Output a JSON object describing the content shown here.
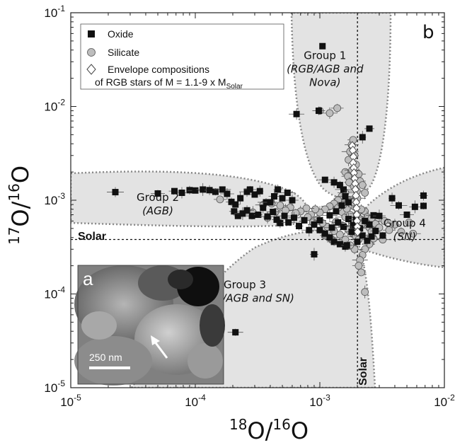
{
  "chart_data": {
    "type": "scatter",
    "panel_label": "b",
    "xlabel": "18O/16O",
    "ylabel": "17O/16O",
    "x_scale": "log",
    "y_scale": "log",
    "xlim": [
      1e-05,
      0.01
    ],
    "ylim": [
      1e-05,
      0.1
    ],
    "x_ticks": [
      {
        "value": 1e-05,
        "base": "10",
        "exp": "-5"
      },
      {
        "value": 0.0001,
        "base": "10",
        "exp": "-4"
      },
      {
        "value": 0.001,
        "base": "10",
        "exp": "-3"
      },
      {
        "value": 0.01,
        "base": "10",
        "exp": "-2"
      }
    ],
    "y_ticks": [
      {
        "value": 1e-05,
        "base": "10",
        "exp": "-5"
      },
      {
        "value": 0.0001,
        "base": "10",
        "exp": "-4"
      },
      {
        "value": 0.001,
        "base": "10",
        "exp": "-3"
      },
      {
        "value": 0.01,
        "base": "10",
        "exp": "-2"
      },
      {
        "value": 0.1,
        "base": "10",
        "exp": "-1"
      }
    ],
    "solar": {
      "x": 0.002005,
      "y": 0.000381,
      "label_h": "Solar",
      "label_v": "Solar"
    },
    "legend": {
      "placement": "top-left",
      "entries": [
        {
          "marker": "square",
          "label": "Oxide"
        },
        {
          "marker": "circle",
          "label": "Silicate"
        },
        {
          "marker": "diamond",
          "label": "Envelope compositions",
          "label2": "of RGB stars of M = 1.1-9 x M",
          "label2_sub": "Solar"
        }
      ]
    },
    "regions": [
      {
        "name": "Group 1",
        "sub1": "(RGB/AGB and",
        "sub2": "Nova)",
        "label_x": 0.0011,
        "label_y": 0.032
      },
      {
        "name": "Group 2",
        "sub1": "(AGB)",
        "sub2": "",
        "label_x": 5e-05,
        "label_y": 0.00098
      },
      {
        "name": "Group 3",
        "sub1": "(RGB/AGB and SN)",
        "sub2": "",
        "label_x": 0.00025,
        "label_y": 0.000115
      },
      {
        "name": "Group 4",
        "sub1": "(SN)",
        "sub2": "",
        "label_x": 0.0048,
        "label_y": 0.00052
      }
    ],
    "series": [
      {
        "name": "Oxide",
        "marker": "square",
        "color": "#111111",
        "points": [
          [
            0.00105,
            0.044
          ],
          [
            0.00065,
            0.0083
          ],
          [
            0.00098,
            0.009
          ],
          [
            0.0025,
            0.0058
          ],
          [
            0.0022,
            0.0047
          ],
          [
            2.28e-05,
            0.00122
          ],
          [
            5e-05,
            0.00118
          ],
          [
            6.8e-05,
            0.00125
          ],
          [
            7.8e-05,
            0.0012
          ],
          [
            9e-05,
            0.00128
          ],
          [
            0.0001,
            0.00127
          ],
          [
            0.000115,
            0.0013
          ],
          [
            0.00013,
            0.00128
          ],
          [
            0.000145,
            0.00123
          ],
          [
            0.000165,
            0.0013
          ],
          [
            0.00018,
            0.00117
          ],
          [
            0.000195,
            0.00096
          ],
          [
            0.00021,
            0.0009
          ],
          [
            0.00023,
            0.00105
          ],
          [
            0.00026,
            0.00123
          ],
          [
            0.000275,
            0.0013
          ],
          [
            0.0003,
            0.00115
          ],
          [
            0.00033,
            0.00125
          ],
          [
            0.00037,
            0.00095
          ],
          [
            0.0004,
            0.00095
          ],
          [
            0.00043,
            0.0011
          ],
          [
            0.00046,
            0.0013
          ],
          [
            0.0005,
            0.00105
          ],
          [
            0.00055,
            0.0012
          ],
          [
            0.0006,
            0.001
          ],
          [
            0.000205,
            0.00076
          ],
          [
            0.00022,
            0.00068
          ],
          [
            0.00024,
            0.00072
          ],
          [
            0.00026,
            0.00078
          ],
          [
            0.000285,
            0.00068
          ],
          [
            0.00032,
            0.0007
          ],
          [
            0.00035,
            0.00083
          ],
          [
            0.00038,
            0.00067
          ],
          [
            0.00042,
            0.00075
          ],
          [
            0.00045,
            0.00062
          ],
          [
            0.00048,
            0.00057
          ],
          [
            0.00052,
            0.00068
          ],
          [
            0.00056,
            0.00058
          ],
          [
            0.00062,
            0.00065
          ],
          [
            0.00068,
            0.00053
          ],
          [
            0.00075,
            0.00061
          ],
          [
            0.00082,
            0.00048
          ],
          [
            0.0009,
            0.00055
          ],
          [
            0.001,
            0.00048
          ],
          [
            0.0011,
            0.00044
          ],
          [
            0.0012,
            0.0004
          ],
          [
            0.0013,
            0.00036
          ],
          [
            0.00145,
            0.00034
          ],
          [
            0.0009,
            0.000265
          ],
          [
            0.0016,
            0.00032
          ],
          [
            0.00021,
            3.9e-05
          ],
          [
            0.0011,
            0.00165
          ],
          [
            0.0013,
            0.00155
          ],
          [
            0.00145,
            0.00145
          ],
          [
            0.00155,
            0.0013
          ],
          [
            0.0016,
            0.0011
          ],
          [
            0.0017,
            0.00095
          ],
          [
            0.0015,
            0.00088
          ],
          [
            0.00135,
            0.00076
          ],
          [
            0.0012,
            0.00069
          ],
          [
            0.0014,
            0.00058
          ],
          [
            0.00155,
            0.00052
          ],
          [
            0.0017,
            0.00063
          ],
          [
            0.00185,
            0.00054
          ],
          [
            0.00195,
            0.00062
          ],
          [
            0.0021,
            0.0005
          ],
          [
            0.0023,
            0.0006
          ],
          [
            0.0025,
            0.00055
          ],
          [
            0.0027,
            0.00069
          ],
          [
            0.003,
            0.00068
          ],
          [
            0.0028,
            0.00047
          ],
          [
            0.0032,
            0.00042
          ],
          [
            0.0022,
            0.00042
          ],
          [
            0.0018,
            0.00046
          ],
          [
            0.00165,
            0.00033
          ],
          [
            0.002,
            0.00036
          ],
          [
            0.0024,
            0.00037
          ],
          [
            0.00125,
            0.00051
          ],
          [
            0.001,
            0.00061
          ],
          [
            0.0026,
            0.00041
          ],
          [
            0.0038,
            0.00105
          ],
          [
            0.0043,
            0.00088
          ],
          [
            0.005,
            0.0007
          ],
          [
            0.0058,
            0.00085
          ],
          [
            0.0068,
            0.00112
          ],
          [
            0.0068,
            0.00087
          ]
        ]
      },
      {
        "name": "Silicate",
        "marker": "circle",
        "color": "#bdbdbd",
        "points": [
          [
            0.001,
            0.009
          ],
          [
            0.0012,
            0.0085
          ],
          [
            0.00138,
            0.0096
          ],
          [
            0.0016,
            0.002
          ],
          [
            0.0017,
            0.0027
          ],
          [
            0.00175,
            0.0033
          ],
          [
            0.0018,
            0.0039
          ],
          [
            0.00185,
            0.0044
          ],
          [
            0.0019,
            0.003
          ],
          [
            0.00195,
            0.0024
          ],
          [
            0.00182,
            0.0021
          ],
          [
            0.00168,
            0.0018
          ],
          [
            0.00172,
            0.00155
          ],
          [
            0.00188,
            0.0014
          ],
          [
            0.00198,
            0.00125
          ],
          [
            0.00205,
            0.0019
          ],
          [
            0.0021,
            0.0016
          ],
          [
            0.0022,
            0.00145
          ],
          [
            0.0023,
            0.0012
          ],
          [
            0.0016,
            0.0012
          ],
          [
            0.0015,
            0.0011
          ],
          [
            0.0014,
            0.001
          ],
          [
            0.0013,
            0.00092
          ],
          [
            0.0012,
            0.00086
          ],
          [
            0.0011,
            0.0008
          ],
          [
            0.001,
            0.00074
          ],
          [
            0.00092,
            0.0008
          ],
          [
            0.00085,
            0.0007
          ],
          [
            0.00078,
            0.00082
          ],
          [
            0.0007,
            0.00076
          ],
          [
            0.00064,
            0.00073
          ],
          [
            0.00058,
            0.00084
          ],
          [
            0.00053,
            0.00078
          ],
          [
            0.00048,
            0.00088
          ],
          [
            0.00044,
            0.00075
          ],
          [
            0.00041,
            0.00092
          ],
          [
            0.00038,
            0.00065
          ],
          [
            0.00035,
            0.00089
          ],
          [
            0.000158,
            0.00102
          ],
          [
            0.00029,
            0.00074
          ],
          [
            0.0015,
            0.00075
          ],
          [
            0.0016,
            0.00066
          ],
          [
            0.00165,
            0.00081
          ],
          [
            0.00175,
            0.0007
          ],
          [
            0.0018,
            0.0006
          ],
          [
            0.0019,
            0.00085
          ],
          [
            0.002,
            0.00072
          ],
          [
            0.0021,
            0.00063
          ],
          [
            0.0022,
            0.00056
          ],
          [
            0.0023,
            0.00076
          ],
          [
            0.0024,
            0.00066
          ],
          [
            0.0025,
            0.00051
          ],
          [
            0.0026,
            0.00064
          ],
          [
            0.0028,
            0.00056
          ],
          [
            0.003,
            0.00051
          ],
          [
            0.0033,
            0.0006
          ],
          [
            0.0036,
            0.00048
          ],
          [
            0.004,
            0.00055
          ],
          [
            0.0045,
            0.00046
          ],
          [
            0.0032,
            0.00038
          ],
          [
            0.0027,
            0.00039
          ],
          [
            0.0025,
            0.00034
          ],
          [
            0.0023,
            0.0003
          ],
          [
            0.0022,
            0.00026
          ],
          [
            0.0021,
            0.00023
          ],
          [
            0.00205,
            0.0002
          ],
          [
            0.00215,
            0.00017
          ],
          [
            0.0023,
            0.000105
          ],
          [
            0.0019,
            0.0003
          ],
          [
            0.00175,
            0.00033
          ],
          [
            0.0016,
            0.00038
          ],
          [
            0.00145,
            0.00043
          ],
          [
            0.0013,
            0.00047
          ],
          [
            0.00115,
            0.00052
          ],
          [
            0.00105,
            0.00057
          ],
          [
            0.00095,
            0.00062
          ],
          [
            0.00088,
            0.00058
          ],
          [
            0.0008,
            0.00066
          ],
          [
            0.00135,
            0.00059
          ],
          [
            0.00155,
            0.00053
          ],
          [
            0.0017,
            0.00048
          ],
          [
            0.00185,
            0.00044
          ],
          [
            0.00195,
            0.00041
          ],
          [
            0.00205,
            0.00038
          ],
          [
            0.0017,
            0.001
          ],
          [
            0.00185,
            0.00095
          ],
          [
            0.002,
            0.00105
          ],
          [
            0.00155,
            0.0009
          ],
          [
            0.0014,
            0.00083
          ],
          [
            0.00215,
            0.0008
          ],
          [
            0.0052,
            0.00058
          ],
          [
            0.0056,
            0.00044
          ],
          [
            0.00125,
            0.00038
          ],
          [
            0.0011,
            0.00042
          ],
          [
            0.0026,
            0.00046
          ]
        ]
      },
      {
        "name": "Envelope compositions of RGB stars of M = 1.1-9 x M Solar",
        "marker": "diamond",
        "color": "#ffffff",
        "points": [
          [
            0.00182,
            0.0038
          ],
          [
            0.00184,
            0.0034
          ],
          [
            0.00186,
            0.0029
          ],
          [
            0.00185,
            0.0025
          ],
          [
            0.00187,
            0.0022
          ],
          [
            0.00188,
            0.00195
          ],
          [
            0.0019,
            0.0017
          ],
          [
            0.00192,
            0.0015
          ],
          [
            0.00193,
            0.0013
          ],
          [
            0.00195,
            0.00112
          ],
          [
            0.00196,
            0.00095
          ],
          [
            0.00197,
            0.00082
          ],
          [
            0.00198,
            0.0007
          ],
          [
            0.00199,
            0.0006
          ],
          [
            0.002,
            0.00052
          ],
          [
            0.00201,
            0.00046
          ]
        ]
      }
    ]
  },
  "inset": {
    "label": "a",
    "scalebar_label": "250 nm"
  }
}
